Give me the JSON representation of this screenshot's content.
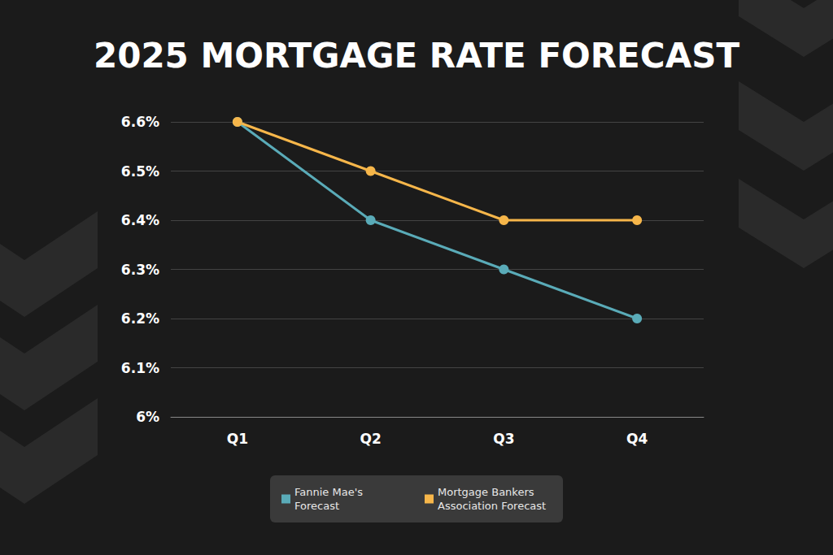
{
  "chart_data": {
    "type": "line",
    "title": "2025 MORTGAGE RATE FORECAST",
    "categories": [
      "Q1",
      "Q2",
      "Q3",
      "Q4"
    ],
    "series": [
      {
        "name": "Fannie Mae's Forecast",
        "color": "#5aabb8",
        "values": [
          6.6,
          6.4,
          6.3,
          6.2
        ]
      },
      {
        "name": "Mortgage Bankers Association Forecast",
        "color": "#f6b64a",
        "values": [
          6.6,
          6.5,
          6.4,
          6.4
        ]
      }
    ],
    "ylim": [
      6,
      6.6
    ],
    "yticks": [
      {
        "value": 6,
        "label": "6%"
      },
      {
        "value": 6.1,
        "label": "6.1%"
      },
      {
        "value": 6.2,
        "label": "6.2%"
      },
      {
        "value": 6.3,
        "label": "6.3%"
      },
      {
        "value": 6.4,
        "label": "6.4%"
      },
      {
        "value": 6.5,
        "label": "6.5%"
      },
      {
        "value": 6.6,
        "label": "6.6%"
      }
    ],
    "grid": true,
    "legend": "bottom",
    "marker": "circle"
  }
}
